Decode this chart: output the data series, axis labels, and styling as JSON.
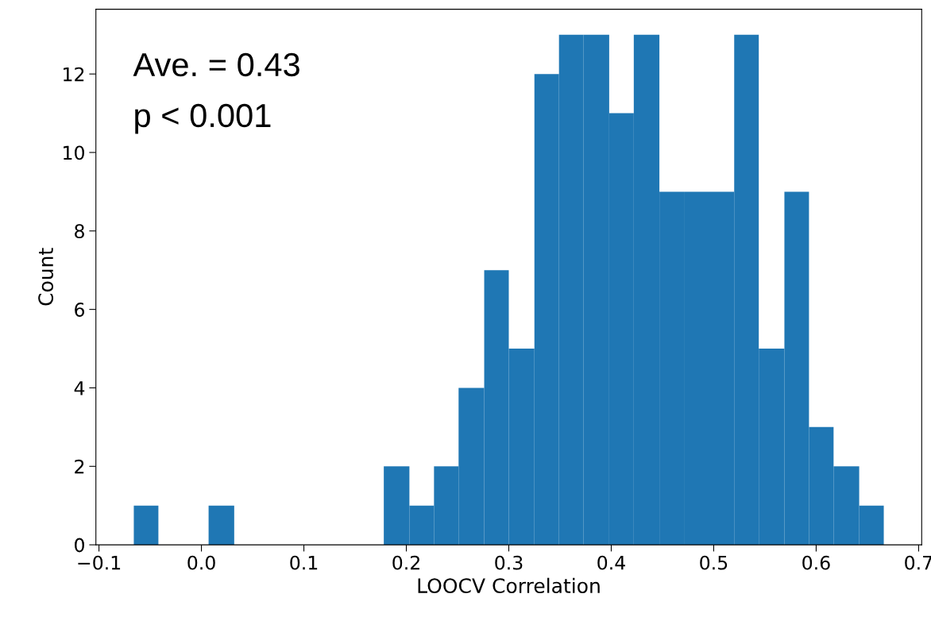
{
  "chart_data": {
    "type": "histogram",
    "xlabel": "LOOCV Correlation",
    "ylabel": "Count",
    "color": "#1f77b4",
    "bins": [
      -0.066,
      -0.042,
      0.007,
      0.032,
      0.178,
      0.203,
      0.227,
      0.251,
      0.276,
      0.3,
      0.325,
      0.349,
      0.373,
      0.398,
      0.422,
      0.447,
      0.471,
      0.495,
      0.52,
      0.544,
      0.569,
      0.593,
      0.617,
      0.642,
      0.666
    ],
    "values": [
      1,
      0,
      1,
      0,
      2,
      1,
      2,
      4,
      7,
      5,
      12,
      13,
      13,
      11,
      13,
      9,
      9,
      9,
      13,
      5,
      9,
      3,
      2,
      1
    ],
    "xlim": [
      -0.103,
      0.703
    ],
    "xticks": [
      {
        "value": -0.1,
        "label": "−0.1"
      },
      {
        "value": 0,
        "label": "0.0"
      },
      0.1,
      0.2,
      0.3,
      0.4,
      0.5,
      0.6,
      0.7
    ],
    "ylim": [
      0,
      13.65
    ],
    "yticks": [
      0,
      2,
      4,
      6,
      8,
      10,
      12
    ],
    "annotations": [
      "Ave. = 0.43",
      "p < 0.001"
    ],
    "grid": false,
    "legend": false
  }
}
